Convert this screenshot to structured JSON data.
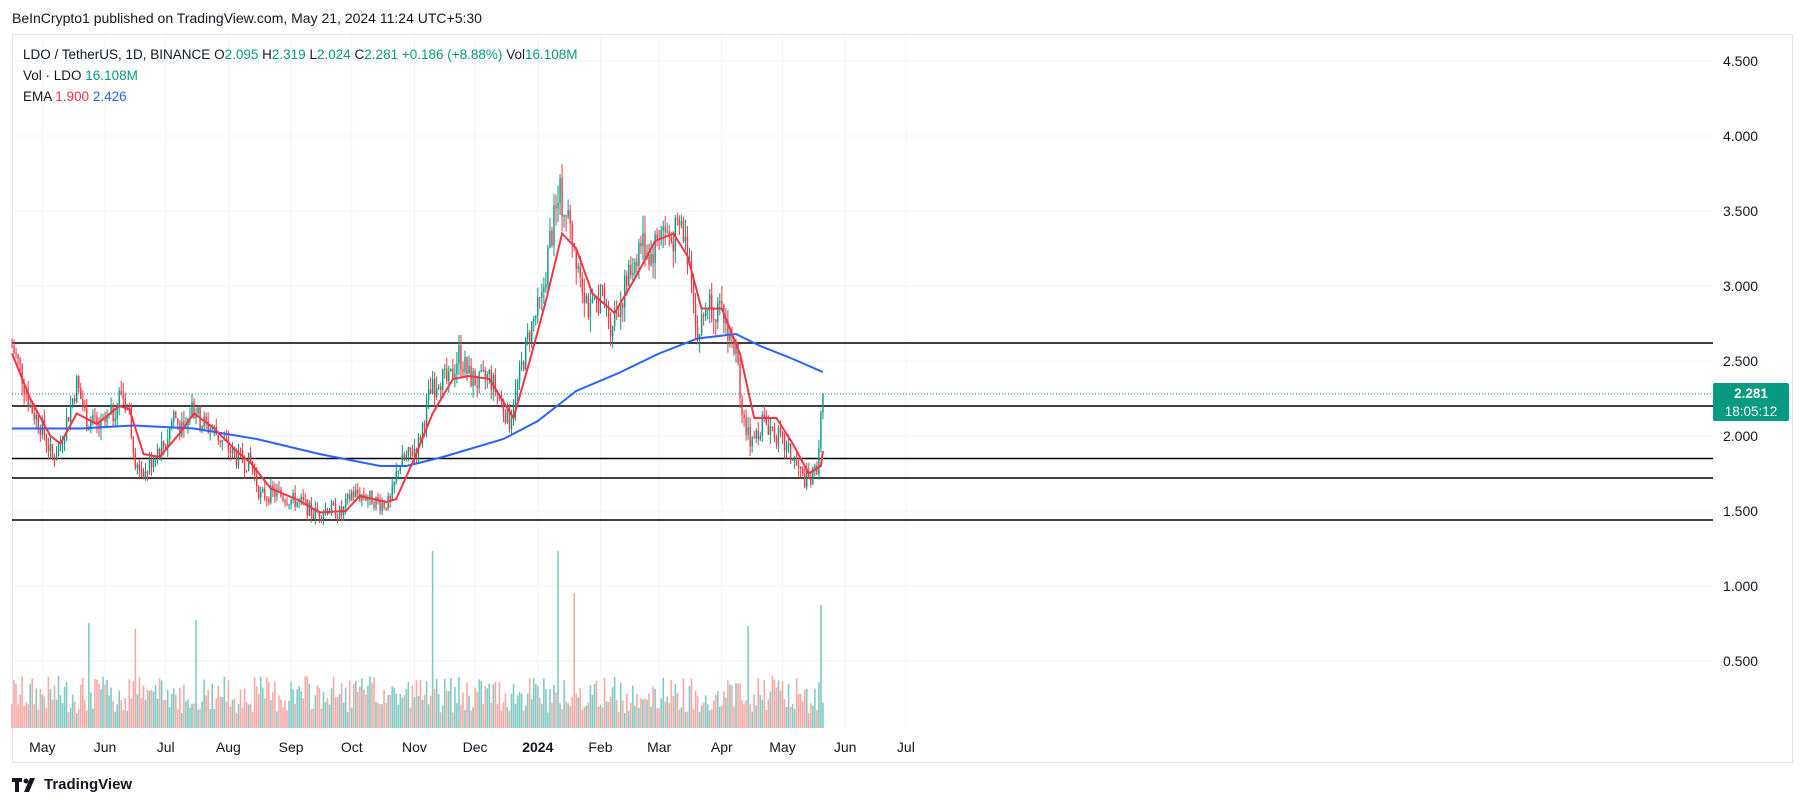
{
  "publisher": "BeInCrypto1 published on TradingView.com, May 21, 2024 11:24 UTC+5:30",
  "legend": {
    "symbol": "LDO / TetherUS, 1D, BINANCE",
    "open_label": "O",
    "open": "2.095",
    "high_label": "H",
    "high": "2.319",
    "low_label": "L",
    "low": "2.024",
    "close_label": "C",
    "close": "2.281",
    "change": "+0.186 (+8.88%)",
    "vol_label": "Vol",
    "vol": "16.108M",
    "vol_title": "Vol · LDO",
    "vol_value": "16.108M",
    "ema_title": "EMA",
    "ema_fast": "1.900",
    "ema_slow": "2.426"
  },
  "price_tag": {
    "price": "2.281",
    "countdown": "18:05:12"
  },
  "footer": {
    "brand": "TradingView"
  },
  "colors": {
    "up": "#089981",
    "down": "#f23645",
    "ema_fast": "#f23645",
    "ema_slow": "#2962ff",
    "vol_up": "#80cbc4",
    "vol_down": "#f7a9a7",
    "level": "#000000",
    "grid": "#f0f3fa"
  },
  "chart_data": {
    "type": "candlestick",
    "y_ticks": [
      "4.500",
      "4.000",
      "3.500",
      "3.000",
      "2.500",
      "2.000",
      "1.500",
      "1.000",
      "0.500"
    ],
    "ylim": [
      0.0,
      4.6
    ],
    "x_ticks": [
      {
        "label": "May",
        "date": "2023-05-01",
        "bold": false
      },
      {
        "label": "Jun",
        "date": "2023-06-01",
        "bold": false
      },
      {
        "label": "Jul",
        "date": "2023-07-01",
        "bold": false
      },
      {
        "label": "Aug",
        "date": "2023-08-01",
        "bold": false
      },
      {
        "label": "Sep",
        "date": "2023-09-01",
        "bold": false
      },
      {
        "label": "Oct",
        "date": "2023-10-01",
        "bold": false
      },
      {
        "label": "Nov",
        "date": "2023-11-01",
        "bold": false
      },
      {
        "label": "Dec",
        "date": "2023-12-01",
        "bold": false
      },
      {
        "label": "2024",
        "date": "2024-01-01",
        "bold": true
      },
      {
        "label": "Feb",
        "date": "2024-02-01",
        "bold": false
      },
      {
        "label": "Mar",
        "date": "2024-03-01",
        "bold": false
      },
      {
        "label": "Apr",
        "date": "2024-04-01",
        "bold": false
      },
      {
        "label": "May",
        "date": "2024-05-01",
        "bold": false
      },
      {
        "label": "Jun",
        "date": "2024-06-01",
        "bold": false
      },
      {
        "label": "Jul",
        "date": "2024-07-01",
        "bold": false
      }
    ],
    "horizontal_levels": [
      2.62,
      2.2,
      1.85,
      1.72,
      1.44
    ],
    "last_close": 2.281,
    "close_series": [
      {
        "date": "2023-04-16",
        "close": 2.6
      },
      {
        "date": "2023-04-20",
        "close": 2.45
      },
      {
        "date": "2023-04-25",
        "close": 2.2
      },
      {
        "date": "2023-05-01",
        "close": 2.05
      },
      {
        "date": "2023-05-06",
        "close": 1.85
      },
      {
        "date": "2023-05-10",
        "close": 1.95
      },
      {
        "date": "2023-05-15",
        "close": 2.2
      },
      {
        "date": "2023-05-18",
        "close": 2.35
      },
      {
        "date": "2023-05-23",
        "close": 2.1
      },
      {
        "date": "2023-05-30",
        "close": 2.05
      },
      {
        "date": "2023-06-05",
        "close": 2.15
      },
      {
        "date": "2023-06-09",
        "close": 2.3
      },
      {
        "date": "2023-06-13",
        "close": 2.15
      },
      {
        "date": "2023-06-16",
        "close": 1.85
      },
      {
        "date": "2023-06-21",
        "close": 1.75
      },
      {
        "date": "2023-06-26",
        "close": 1.9
      },
      {
        "date": "2023-07-01",
        "close": 1.95
      },
      {
        "date": "2023-07-05",
        "close": 2.15
      },
      {
        "date": "2023-07-10",
        "close": 2.0
      },
      {
        "date": "2023-07-14",
        "close": 2.2
      },
      {
        "date": "2023-07-18",
        "close": 2.1
      },
      {
        "date": "2023-07-24",
        "close": 2.05
      },
      {
        "date": "2023-07-30",
        "close": 1.95
      },
      {
        "date": "2023-08-05",
        "close": 1.85
      },
      {
        "date": "2023-08-12",
        "close": 1.82
      },
      {
        "date": "2023-08-17",
        "close": 1.6
      },
      {
        "date": "2023-08-24",
        "close": 1.62
      },
      {
        "date": "2023-08-31",
        "close": 1.58
      },
      {
        "date": "2023-09-07",
        "close": 1.55
      },
      {
        "date": "2023-09-12",
        "close": 1.48
      },
      {
        "date": "2023-09-19",
        "close": 1.52
      },
      {
        "date": "2023-09-26",
        "close": 1.48
      },
      {
        "date": "2023-10-01",
        "close": 1.62
      },
      {
        "date": "2023-10-08",
        "close": 1.6
      },
      {
        "date": "2023-10-15",
        "close": 1.55
      },
      {
        "date": "2023-10-20",
        "close": 1.55
      },
      {
        "date": "2023-10-24",
        "close": 1.8
      },
      {
        "date": "2023-10-28",
        "close": 1.85
      },
      {
        "date": "2023-11-03",
        "close": 1.95
      },
      {
        "date": "2023-11-08",
        "close": 2.25
      },
      {
        "date": "2023-11-13",
        "close": 2.4
      },
      {
        "date": "2023-11-18",
        "close": 2.35
      },
      {
        "date": "2023-11-23",
        "close": 2.55
      },
      {
        "date": "2023-11-28",
        "close": 2.4
      },
      {
        "date": "2023-12-03",
        "close": 2.35
      },
      {
        "date": "2023-12-08",
        "close": 2.4
      },
      {
        "date": "2023-12-13",
        "close": 2.25
      },
      {
        "date": "2023-12-18",
        "close": 2.1
      },
      {
        "date": "2023-12-23",
        "close": 2.4
      },
      {
        "date": "2023-12-28",
        "close": 2.7
      },
      {
        "date": "2024-01-03",
        "close": 2.9
      },
      {
        "date": "2024-01-07",
        "close": 3.3
      },
      {
        "date": "2024-01-12",
        "close": 3.6
      },
      {
        "date": "2024-01-17",
        "close": 3.4
      },
      {
        "date": "2024-01-22",
        "close": 3.1
      },
      {
        "date": "2024-01-27",
        "close": 2.8
      },
      {
        "date": "2024-02-01",
        "close": 2.95
      },
      {
        "date": "2024-02-06",
        "close": 2.75
      },
      {
        "date": "2024-02-11",
        "close": 2.9
      },
      {
        "date": "2024-02-16",
        "close": 3.1
      },
      {
        "date": "2024-02-21",
        "close": 3.3
      },
      {
        "date": "2024-02-26",
        "close": 3.2
      },
      {
        "date": "2024-03-02",
        "close": 3.4
      },
      {
        "date": "2024-03-07",
        "close": 3.3
      },
      {
        "date": "2024-03-12",
        "close": 3.4
      },
      {
        "date": "2024-03-17",
        "close": 3.1
      },
      {
        "date": "2024-03-20",
        "close": 2.65
      },
      {
        "date": "2024-03-25",
        "close": 2.9
      },
      {
        "date": "2024-03-29",
        "close": 2.85
      },
      {
        "date": "2024-04-03",
        "close": 2.75
      },
      {
        "date": "2024-04-08",
        "close": 2.55
      },
      {
        "date": "2024-04-12",
        "close": 2.1
      },
      {
        "date": "2024-04-16",
        "close": 1.95
      },
      {
        "date": "2024-04-21",
        "close": 2.1
      },
      {
        "date": "2024-04-26",
        "close": 2.05
      },
      {
        "date": "2024-05-01",
        "close": 1.95
      },
      {
        "date": "2024-05-06",
        "close": 1.85
      },
      {
        "date": "2024-05-11",
        "close": 1.72
      },
      {
        "date": "2024-05-15",
        "close": 1.7
      },
      {
        "date": "2024-05-18",
        "close": 1.8
      },
      {
        "date": "2024-05-20",
        "close": 2.1
      },
      {
        "date": "2024-05-21",
        "close": 2.281
      }
    ],
    "ema_fast": [
      {
        "date": "2023-04-16",
        "v": 2.55
      },
      {
        "date": "2023-04-25",
        "v": 2.25
      },
      {
        "date": "2023-05-05",
        "v": 2.0
      },
      {
        "date": "2023-05-10",
        "v": 1.95
      },
      {
        "date": "2023-05-18",
        "v": 2.15
      },
      {
        "date": "2023-05-28",
        "v": 2.08
      },
      {
        "date": "2023-06-08",
        "v": 2.2
      },
      {
        "date": "2023-06-13",
        "v": 2.18
      },
      {
        "date": "2023-06-20",
        "v": 1.88
      },
      {
        "date": "2023-06-28",
        "v": 1.86
      },
      {
        "date": "2023-07-08",
        "v": 2.02
      },
      {
        "date": "2023-07-15",
        "v": 2.15
      },
      {
        "date": "2023-07-25",
        "v": 2.05
      },
      {
        "date": "2023-08-05",
        "v": 1.9
      },
      {
        "date": "2023-08-12",
        "v": 1.82
      },
      {
        "date": "2023-08-22",
        "v": 1.65
      },
      {
        "date": "2023-09-05",
        "v": 1.57
      },
      {
        "date": "2023-09-15",
        "v": 1.49
      },
      {
        "date": "2023-09-28",
        "v": 1.5
      },
      {
        "date": "2023-10-05",
        "v": 1.6
      },
      {
        "date": "2023-10-18",
        "v": 1.56
      },
      {
        "date": "2023-10-23",
        "v": 1.58
      },
      {
        "date": "2023-11-01",
        "v": 1.85
      },
      {
        "date": "2023-11-10",
        "v": 2.15
      },
      {
        "date": "2023-11-20",
        "v": 2.38
      },
      {
        "date": "2023-11-28",
        "v": 2.4
      },
      {
        "date": "2023-12-08",
        "v": 2.38
      },
      {
        "date": "2023-12-20",
        "v": 2.12
      },
      {
        "date": "2023-12-28",
        "v": 2.5
      },
      {
        "date": "2024-01-05",
        "v": 2.9
      },
      {
        "date": "2024-01-13",
        "v": 3.35
      },
      {
        "date": "2024-01-20",
        "v": 3.25
      },
      {
        "date": "2024-01-28",
        "v": 2.95
      },
      {
        "date": "2024-02-08",
        "v": 2.82
      },
      {
        "date": "2024-02-18",
        "v": 3.05
      },
      {
        "date": "2024-02-28",
        "v": 3.3
      },
      {
        "date": "2024-03-08",
        "v": 3.35
      },
      {
        "date": "2024-03-15",
        "v": 3.2
      },
      {
        "date": "2024-03-22",
        "v": 2.85
      },
      {
        "date": "2024-04-01",
        "v": 2.85
      },
      {
        "date": "2024-04-10",
        "v": 2.55
      },
      {
        "date": "2024-04-17",
        "v": 2.12
      },
      {
        "date": "2024-04-28",
        "v": 2.12
      },
      {
        "date": "2024-05-06",
        "v": 1.95
      },
      {
        "date": "2024-05-14",
        "v": 1.75
      },
      {
        "date": "2024-05-20",
        "v": 1.8
      },
      {
        "date": "2024-05-21",
        "v": 1.9
      }
    ],
    "ema_slow": [
      {
        "date": "2023-04-16",
        "v": 2.05
      },
      {
        "date": "2023-05-20",
        "v": 2.05
      },
      {
        "date": "2023-06-15",
        "v": 2.07
      },
      {
        "date": "2023-07-15",
        "v": 2.05
      },
      {
        "date": "2023-08-15",
        "v": 1.98
      },
      {
        "date": "2023-09-15",
        "v": 1.88
      },
      {
        "date": "2023-10-15",
        "v": 1.8
      },
      {
        "date": "2023-10-28",
        "v": 1.8
      },
      {
        "date": "2023-11-15",
        "v": 1.86
      },
      {
        "date": "2023-12-15",
        "v": 1.98
      },
      {
        "date": "2024-01-01",
        "v": 2.1
      },
      {
        "date": "2024-01-20",
        "v": 2.3
      },
      {
        "date": "2024-02-10",
        "v": 2.42
      },
      {
        "date": "2024-03-01",
        "v": 2.55
      },
      {
        "date": "2024-03-20",
        "v": 2.65
      },
      {
        "date": "2024-04-08",
        "v": 2.68
      },
      {
        "date": "2024-04-20",
        "v": 2.6
      },
      {
        "date": "2024-05-05",
        "v": 2.52
      },
      {
        "date": "2024-05-21",
        "v": 2.426
      }
    ],
    "volume_ylim": [
      0,
      4.6
    ],
    "volume_spikes": [
      {
        "date": "2023-11-10",
        "v": 1.18
      },
      {
        "date": "2024-01-11",
        "v": 1.18
      },
      {
        "date": "2024-01-19",
        "v": 0.9
      },
      {
        "date": "2024-05-20",
        "v": 0.82
      },
      {
        "date": "2023-05-24",
        "v": 0.7
      },
      {
        "date": "2023-06-16",
        "v": 0.66
      },
      {
        "date": "2023-07-16",
        "v": 0.72
      },
      {
        "date": "2024-04-14",
        "v": 0.68
      }
    ]
  }
}
